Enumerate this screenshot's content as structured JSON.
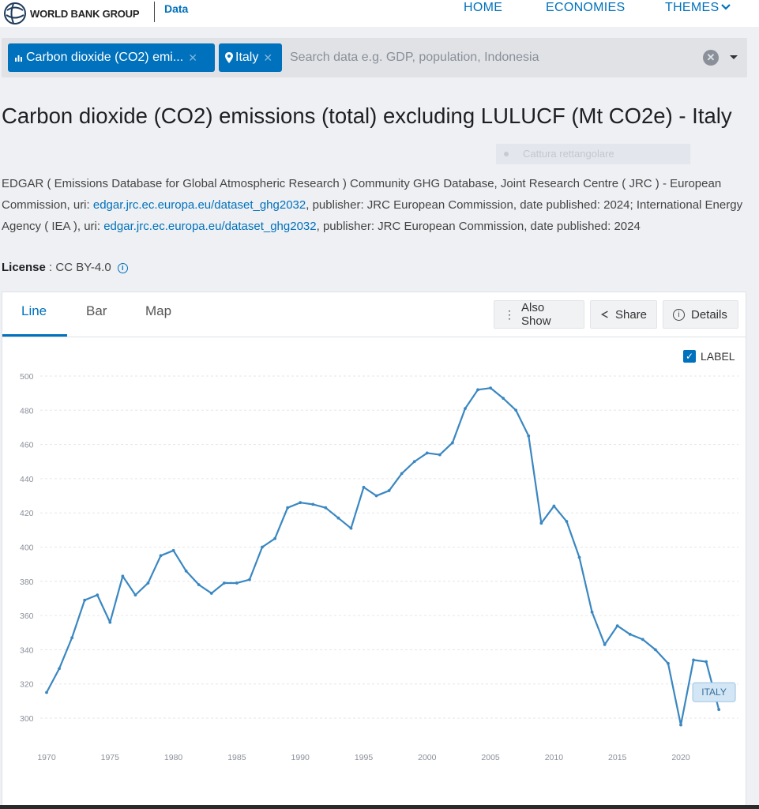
{
  "header": {
    "brand": "WORLD BANK GROUP",
    "section": "Data",
    "nav": [
      "HOME",
      "ECONOMIES",
      "THEMES"
    ]
  },
  "search": {
    "chips": [
      {
        "label": "Carbon dioxide (CO2) emi...",
        "icon": "bar-chart-icon"
      },
      {
        "label": "Italy",
        "icon": "map-pin-icon"
      }
    ],
    "placeholder": "Search data e.g. GDP, population, Indonesia"
  },
  "page": {
    "title": "Carbon dioxide (CO2) emissions (total) excluding LULUCF (Mt CO2e) - Italy",
    "overlay_hint": "Cattura rettangolare",
    "source_1": "EDGAR ( Emissions Database for Global Atmospheric Research ) Community GHG Database, Joint Research Centre ( JRC ) - European Commission, uri: ",
    "source_link_1": "edgar.jrc.ec.europa.eu/dataset_ghg2032",
    "source_2": ", publisher: JRC European Commission, date published: 2024; International Energy Agency ( IEA ), uri: ",
    "source_link_2": "edgar.jrc.ec.europa.eu/dataset_ghg2032",
    "source_3": ", publisher: JRC European Commission, date published: 2024",
    "license_label": "License",
    "license_value": " : CC BY-4.0"
  },
  "tabs": [
    "Line",
    "Bar",
    "Map"
  ],
  "actions": [
    "Also Show",
    "Share",
    "Details"
  ],
  "label_toggle": "LABEL",
  "colors": {
    "accent": "#0071bc",
    "line": "#3a87c1"
  },
  "chart_data": {
    "type": "line",
    "title": "",
    "xlabel": "",
    "ylabel": "",
    "ylim": [
      290,
      500
    ],
    "xlim": [
      1970,
      2023
    ],
    "grid": true,
    "y_ticks": [
      300,
      320,
      340,
      360,
      380,
      400,
      420,
      440,
      460,
      480,
      500
    ],
    "x_ticks": [
      1970,
      1975,
      1980,
      1985,
      1990,
      1995,
      2000,
      2005,
      2010,
      2015,
      2020
    ],
    "series": [
      {
        "name": "ITALY",
        "x": [
          1970,
          1971,
          1972,
          1973,
          1974,
          1975,
          1976,
          1977,
          1978,
          1979,
          1980,
          1981,
          1982,
          1983,
          1984,
          1985,
          1986,
          1987,
          1988,
          1989,
          1990,
          1991,
          1992,
          1993,
          1994,
          1995,
          1996,
          1997,
          1998,
          1999,
          2000,
          2001,
          2002,
          2003,
          2004,
          2005,
          2006,
          2007,
          2008,
          2009,
          2010,
          2011,
          2012,
          2013,
          2014,
          2015,
          2016,
          2017,
          2018,
          2019,
          2020,
          2021,
          2022,
          2023
        ],
        "values": [
          315,
          329,
          347,
          369,
          372,
          356,
          383,
          372,
          379,
          395,
          398,
          386,
          378,
          373,
          379,
          379,
          381,
          400,
          405,
          423,
          426,
          425,
          423,
          417,
          411,
          435,
          430,
          433,
          443,
          450,
          455,
          454,
          461,
          481,
          492,
          493,
          487,
          480,
          465,
          414,
          424,
          415,
          394,
          362,
          343,
          354,
          349,
          346,
          340,
          332,
          296,
          334,
          333,
          305
        ]
      }
    ]
  }
}
